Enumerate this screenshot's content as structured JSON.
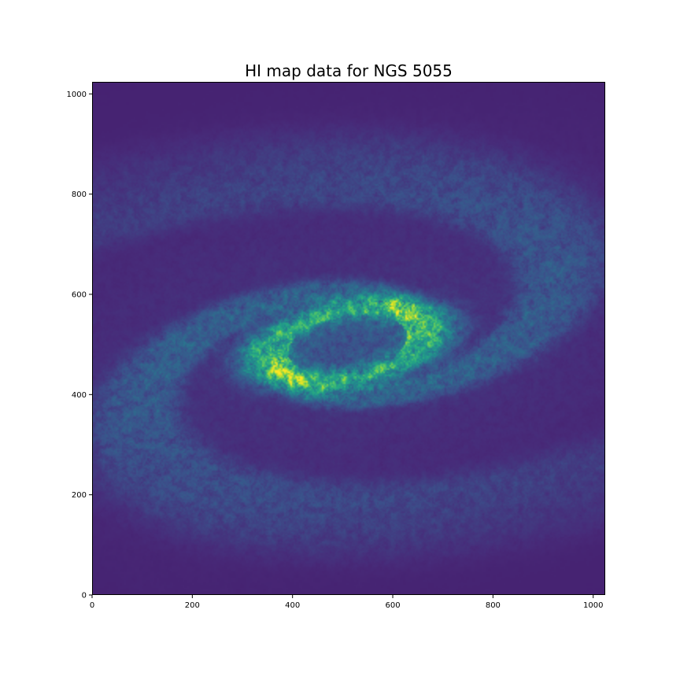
{
  "chart_data": {
    "type": "heatmap",
    "title": "HI map data for NGS 5055",
    "xlabel": "",
    "ylabel": "",
    "xlim": [
      0,
      1024
    ],
    "ylim": [
      0,
      1024
    ],
    "x_ticks": [
      0,
      200,
      400,
      600,
      800,
      1000
    ],
    "y_ticks": [
      0,
      200,
      400,
      600,
      800,
      1000
    ],
    "colormap": "viridis",
    "background_color": "#472d7b",
    "grid": false,
    "image_description_features": {
      "center": [
        510,
        500
      ],
      "core_ring_semi_axes": [
        200,
        80
      ],
      "core_ring_tilt_deg": 10,
      "spiral_arms": 2
    }
  }
}
